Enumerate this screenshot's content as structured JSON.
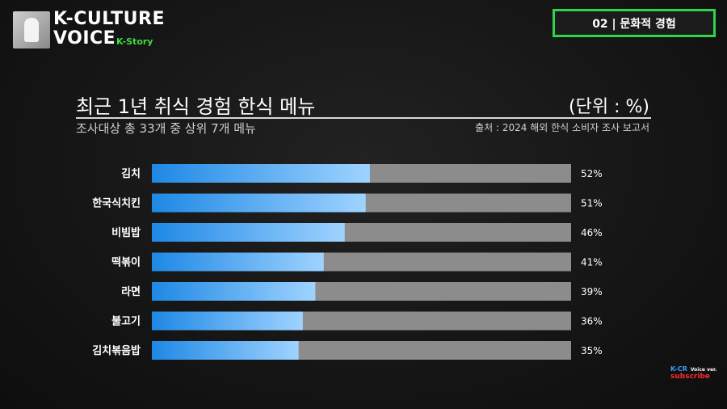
{
  "brand": {
    "line1": "K-CULTURE",
    "line2": "VOICE",
    "tag": "K-Story"
  },
  "section_badge": "02 | 문화적 경험",
  "header": {
    "title": "최근 1년 취식 경험 한식 메뉴",
    "unit": "(단위 : %)",
    "subtitle": "조사대상 총 33개 중 상위 7개 메뉴",
    "source": "출처 : 2024 해외 한식 소비자 조사 보고서"
  },
  "subscribe_badge": {
    "kcr": "K-CR",
    "voice": "Voice ver.",
    "subscribe": "subscribe"
  },
  "colors": {
    "bar_start": "#1e88e5",
    "bar_end": "#9fd3ff",
    "track": "#8c8c8c",
    "badge_border": "#2ed44a",
    "brand_tag": "#3ddc3d"
  },
  "chart_data": {
    "type": "bar",
    "orientation": "horizontal",
    "title": "최근 1년 취식 경험 한식 메뉴",
    "categories": [
      "김치",
      "한국식치킨",
      "비빔밥",
      "떡볶이",
      "라면",
      "불고기",
      "김치볶음밥"
    ],
    "values": [
      52,
      51,
      46,
      41,
      39,
      36,
      35
    ],
    "value_labels": [
      "52%",
      "51%",
      "46%",
      "41%",
      "39%",
      "36%",
      "35%"
    ],
    "xlim": [
      0,
      100
    ],
    "grid": false,
    "legend": "none"
  }
}
